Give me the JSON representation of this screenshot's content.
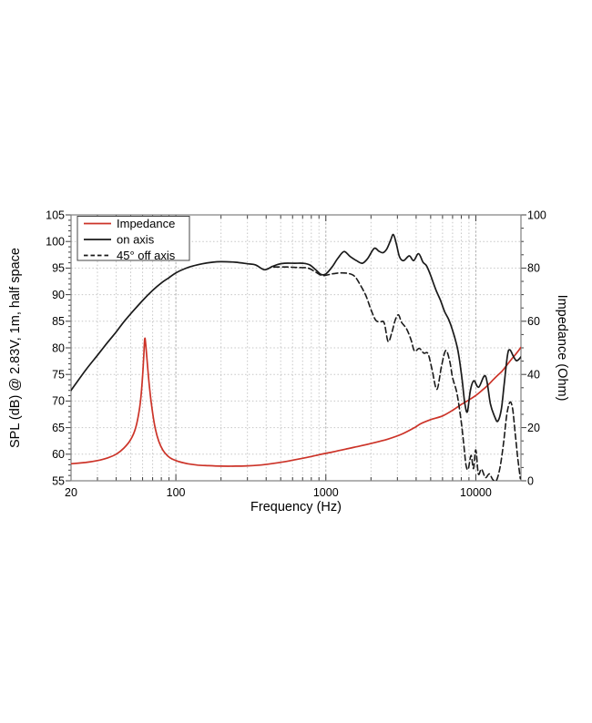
{
  "figure": {
    "background": "#ffffff",
    "frame_color": "#7f7f7f",
    "tick_color": "#3c3c3c",
    "grid_minor_color": "#c6c6c6",
    "grid_decade_color": "#aeaeae",
    "legend": {
      "entries": [
        {
          "label": "Impedance",
          "color": "#cc3328",
          "dash": false
        },
        {
          "label": "on axis",
          "color": "#1a1a1a",
          "dash": false
        },
        {
          "label": "45° off axis",
          "color": "#1a1a1a",
          "dash": true
        }
      ]
    }
  },
  "chart_data": {
    "type": "line",
    "title": "",
    "xlabel": "Frequency (Hz)",
    "ylabel_left": "SPL (dB) @ 2.83V, 1m, half space",
    "ylabel_right": "Impedance (Ohm)",
    "x_scale": "log",
    "xlim": [
      20,
      20000
    ],
    "ylim_left": [
      55,
      105
    ],
    "ylim_right": [
      0,
      100
    ],
    "grid": true,
    "legend_position": "top-left",
    "x_ticks": {
      "values": [
        20,
        100,
        1000,
        10000
      ],
      "labels": [
        "20",
        "100",
        "1000",
        "10000"
      ]
    },
    "y_left_ticks": {
      "values": [
        55,
        60,
        65,
        70,
        75,
        80,
        85,
        90,
        95,
        100,
        105
      ],
      "labels": [
        "55",
        "60",
        "65",
        "70",
        "75",
        "80",
        "85",
        "90",
        "95",
        "100",
        "105"
      ]
    },
    "y_right_ticks": {
      "values": [
        0,
        20,
        40,
        60,
        80,
        100
      ],
      "labels": [
        "0",
        "20",
        "40",
        "60",
        "80",
        "100"
      ]
    },
    "series": [
      {
        "name": "Impedance",
        "axis": "right",
        "unit": "Ohm",
        "color": "#cc3328",
        "style": "solid",
        "points": [
          [
            20,
            6.4
          ],
          [
            25,
            6.9
          ],
          [
            30,
            7.6
          ],
          [
            35,
            8.6
          ],
          [
            40,
            10.0
          ],
          [
            45,
            12.3
          ],
          [
            50,
            15.5
          ],
          [
            54,
            20.0
          ],
          [
            57,
            26.5
          ],
          [
            59,
            34.0
          ],
          [
            61,
            46.0
          ],
          [
            62,
            53.4
          ],
          [
            63,
            51.0
          ],
          [
            65,
            42.0
          ],
          [
            67,
            34.0
          ],
          [
            70,
            25.5
          ],
          [
            73,
            19.5
          ],
          [
            77,
            14.8
          ],
          [
            82,
            11.5
          ],
          [
            88,
            9.4
          ],
          [
            95,
            8.1
          ],
          [
            105,
            7.2
          ],
          [
            120,
            6.4
          ],
          [
            140,
            5.9
          ],
          [
            165,
            5.7
          ],
          [
            200,
            5.5
          ],
          [
            250,
            5.5
          ],
          [
            300,
            5.6
          ],
          [
            360,
            5.9
          ],
          [
            430,
            6.4
          ],
          [
            520,
            7.1
          ],
          [
            620,
            7.9
          ],
          [
            750,
            8.8
          ],
          [
            900,
            9.8
          ],
          [
            1100,
            10.8
          ],
          [
            1350,
            11.9
          ],
          [
            1700,
            13.1
          ],
          [
            2100,
            14.3
          ],
          [
            2600,
            15.7
          ],
          [
            3200,
            17.5
          ],
          [
            3900,
            20.0
          ],
          [
            4300,
            21.5
          ],
          [
            5000,
            23.0
          ],
          [
            6000,
            24.4
          ],
          [
            7000,
            26.5
          ],
          [
            8000,
            28.7
          ],
          [
            9000,
            30.4
          ],
          [
            10000,
            32.1
          ],
          [
            11000,
            34.0
          ],
          [
            12000,
            35.9
          ],
          [
            13000,
            37.9
          ],
          [
            14000,
            39.7
          ],
          [
            15000,
            41.3
          ],
          [
            16000,
            43.3
          ],
          [
            17000,
            45.2
          ],
          [
            18000,
            46.9
          ],
          [
            19000,
            48.5
          ],
          [
            20000,
            50.2
          ]
        ]
      },
      {
        "name": "on axis",
        "axis": "left",
        "unit": "dB",
        "color": "#1a1a1a",
        "style": "solid",
        "points": [
          [
            20,
            72.0
          ],
          [
            25,
            75.8
          ],
          [
            30,
            78.6
          ],
          [
            35,
            81.0
          ],
          [
            40,
            83.0
          ],
          [
            45,
            84.9
          ],
          [
            50,
            86.4
          ],
          [
            60,
            88.9
          ],
          [
            70,
            90.8
          ],
          [
            80,
            92.2
          ],
          [
            90,
            93.2
          ],
          [
            100,
            94.1
          ],
          [
            115,
            94.9
          ],
          [
            130,
            95.4
          ],
          [
            150,
            95.8
          ],
          [
            175,
            96.1
          ],
          [
            200,
            96.2
          ],
          [
            250,
            96.1
          ],
          [
            300,
            95.8
          ],
          [
            340,
            95.6
          ],
          [
            390,
            94.7
          ],
          [
            440,
            95.3
          ],
          [
            480,
            95.7
          ],
          [
            530,
            95.9
          ],
          [
            620,
            95.9
          ],
          [
            700,
            95.9
          ],
          [
            780,
            95.6
          ],
          [
            870,
            94.5
          ],
          [
            930,
            93.8
          ],
          [
            1000,
            93.9
          ],
          [
            1100,
            95.2
          ],
          [
            1200,
            96.8
          ],
          [
            1320,
            98.1
          ],
          [
            1450,
            97.2
          ],
          [
            1600,
            96.4
          ],
          [
            1750,
            95.9
          ],
          [
            1900,
            96.8
          ],
          [
            2100,
            98.7
          ],
          [
            2250,
            98.2
          ],
          [
            2400,
            97.9
          ],
          [
            2550,
            98.6
          ],
          [
            2700,
            100.2
          ],
          [
            2820,
            101.3
          ],
          [
            2950,
            99.6
          ],
          [
            3100,
            97.1
          ],
          [
            3300,
            96.4
          ],
          [
            3600,
            97.3
          ],
          [
            3850,
            96.4
          ],
          [
            4150,
            97.7
          ],
          [
            4450,
            96.1
          ],
          [
            4700,
            95.4
          ],
          [
            5000,
            93.6
          ],
          [
            5400,
            91.0
          ],
          [
            5800,
            89.0
          ],
          [
            6200,
            86.8
          ],
          [
            6600,
            85.3
          ],
          [
            7000,
            83.3
          ],
          [
            7400,
            80.9
          ],
          [
            7700,
            78.6
          ],
          [
            8100,
            74.0
          ],
          [
            8450,
            69.5
          ],
          [
            8790,
            68.0
          ],
          [
            9200,
            72.0
          ],
          [
            9700,
            73.8
          ],
          [
            10450,
            72.6
          ],
          [
            11600,
            74.7
          ],
          [
            12500,
            69.5
          ],
          [
            13300,
            67.2
          ],
          [
            14000,
            66.2
          ],
          [
            14800,
            68.5
          ],
          [
            15500,
            73.5
          ],
          [
            16300,
            78.8
          ],
          [
            16900,
            79.6
          ],
          [
            17800,
            78.4
          ],
          [
            18600,
            77.6
          ],
          [
            19300,
            77.8
          ],
          [
            20000,
            78.3
          ]
        ]
      },
      {
        "name": "45° off axis",
        "axis": "left",
        "unit": "dB",
        "color": "#1a1a1a",
        "style": "dashed",
        "points": [
          [
            450,
            95.2
          ],
          [
            550,
            95.2
          ],
          [
            650,
            95.1
          ],
          [
            760,
            95.0
          ],
          [
            850,
            94.3
          ],
          [
            950,
            93.6
          ],
          [
            1100,
            93.9
          ],
          [
            1250,
            94.1
          ],
          [
            1400,
            94.0
          ],
          [
            1550,
            93.5
          ],
          [
            1700,
            91.8
          ],
          [
            1850,
            89.8
          ],
          [
            2000,
            87.2
          ],
          [
            2150,
            85.2
          ],
          [
            2300,
            84.9
          ],
          [
            2450,
            84.7
          ],
          [
            2600,
            81.2
          ],
          [
            2750,
            82.8
          ],
          [
            2900,
            85.2
          ],
          [
            3050,
            86.2
          ],
          [
            3200,
            84.8
          ],
          [
            3450,
            83.6
          ],
          [
            3700,
            81.5
          ],
          [
            3900,
            79.4
          ],
          [
            4200,
            79.9
          ],
          [
            4500,
            79.0
          ],
          [
            4800,
            78.9
          ],
          [
            5100,
            76.0
          ],
          [
            5500,
            72.2
          ],
          [
            5900,
            76.5
          ],
          [
            6300,
            79.5
          ],
          [
            6700,
            77.5
          ],
          [
            7000,
            74.4
          ],
          [
            7500,
            71.3
          ],
          [
            8000,
            66.0
          ],
          [
            8300,
            62.0
          ],
          [
            8600,
            58.0
          ],
          [
            8900,
            57.2
          ],
          [
            9300,
            59.8
          ],
          [
            9650,
            57.3
          ],
          [
            10000,
            60.8
          ],
          [
            10400,
            56.3
          ],
          [
            10900,
            57.2
          ],
          [
            11600,
            55.6
          ],
          [
            12300,
            56.3
          ],
          [
            13000,
            55.2
          ],
          [
            13700,
            55.0
          ],
          [
            14500,
            57.5
          ],
          [
            15300,
            62.0
          ],
          [
            16100,
            67.5
          ],
          [
            16900,
            69.8
          ],
          [
            17600,
            68.5
          ],
          [
            18300,
            64.0
          ],
          [
            19000,
            59.5
          ],
          [
            19800,
            55.4
          ]
        ]
      }
    ]
  }
}
